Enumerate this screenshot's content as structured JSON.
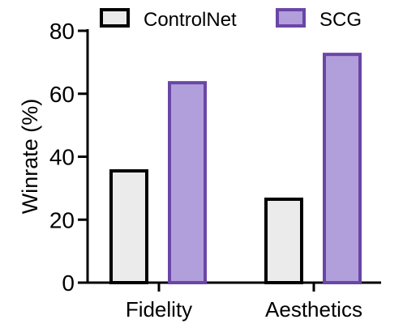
{
  "chart_data": {
    "type": "bar",
    "categories": [
      "Fidelity",
      "Aesthetics"
    ],
    "series": [
      {
        "name": "ControlNet",
        "values": [
          35.5,
          26.5
        ],
        "fill": "#ebebeb",
        "stroke": "#000000"
      },
      {
        "name": "SCG",
        "values": [
          63.5,
          72.5
        ],
        "fill": "#b19fdc",
        "stroke": "#6a46a6"
      }
    ],
    "title": "",
    "xlabel": "",
    "ylabel": "Winrate (%)",
    "ylim": [
      0,
      80
    ],
    "yticks": [
      0,
      20,
      40,
      60,
      80
    ],
    "grid": false,
    "legend": "top"
  }
}
